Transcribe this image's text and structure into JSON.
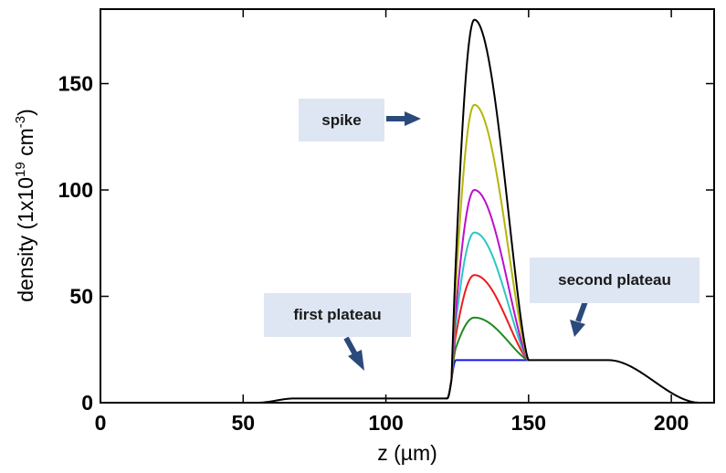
{
  "chart_data": {
    "type": "line",
    "title": "",
    "xlabel": "z (µm)",
    "ylabel": {
      "main": "density (1x10",
      "exp1": "19",
      "mid": " cm",
      "exp2": "-3",
      "end": ")"
    },
    "xlim": [
      0,
      215
    ],
    "ylim": [
      0,
      185
    ],
    "xticks": [
      "0",
      "50",
      "100",
      "150",
      "200"
    ],
    "yticks": [
      "0",
      "50",
      "100",
      "150"
    ],
    "profile": {
      "plateau1_level": 2,
      "plateau1_rise": [
        55,
        68
      ],
      "plateau2_level": 20,
      "plateau2_rise": [
        121.5,
        124.5
      ],
      "plateau2_fall": [
        178,
        210
      ],
      "spike_start": 123,
      "spike_peak_z": 131,
      "spike_end": 150
    },
    "series": [
      {
        "name": "black",
        "color": "#000000",
        "peak": 180
      },
      {
        "name": "yellow",
        "color": "#b5b50a",
        "peak": 140
      },
      {
        "name": "magenta",
        "color": "#bb10cc",
        "peak": 100
      },
      {
        "name": "cyan",
        "color": "#2cc6c6",
        "peak": 80
      },
      {
        "name": "red",
        "color": "#ee1c1c",
        "peak": 60
      },
      {
        "name": "green",
        "color": "#1e8a1e",
        "peak": 40
      },
      {
        "name": "blue",
        "color": "#1515ee",
        "peak": 20
      }
    ],
    "annotations": {
      "spike": "spike",
      "first_plateau": "first plateau",
      "second_plateau": "second plateau"
    },
    "arrow_color": "#2a4a7a"
  }
}
